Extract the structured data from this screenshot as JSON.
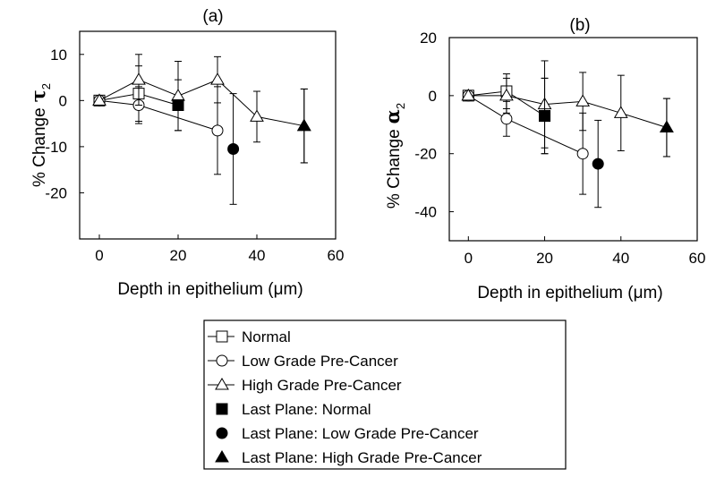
{
  "chart_data": [
    {
      "type": "line",
      "panel_title": "(a)",
      "xlabel": "Depth in epithelium (μm)",
      "ylabel_text": "% Change",
      "ylabel_symbol": "τ",
      "ylabel_subscript": "2",
      "xlim": [
        -5,
        60
      ],
      "ylim": [
        -30,
        15
      ],
      "xticks": [
        0,
        20,
        40,
        60
      ],
      "yticks": [
        10,
        0,
        -10,
        -20
      ],
      "series": [
        {
          "name": "Normal",
          "marker": "square-open",
          "x": [
            0,
            10,
            20
          ],
          "y": [
            0,
            1.5,
            -1
          ],
          "err": [
            null,
            6,
            5.5
          ]
        },
        {
          "name": "Low Grade Pre-Cancer",
          "marker": "circle-open",
          "x": [
            0,
            10,
            30
          ],
          "y": [
            0,
            -1,
            -6.5
          ],
          "err": [
            null,
            4,
            9.5
          ]
        },
        {
          "name": "High Grade Pre-Cancer",
          "marker": "triangle-open",
          "x": [
            0,
            10,
            20,
            30,
            40,
            52
          ],
          "y": [
            0,
            4.5,
            1,
            4.5,
            -3.5,
            -5.5
          ],
          "err": [
            null,
            5.5,
            7.5,
            5,
            5.5,
            8
          ]
        },
        {
          "name": "Last Plane: Normal",
          "marker": "square-filled",
          "x": [
            20
          ],
          "y": [
            -1
          ],
          "err": [
            null
          ]
        },
        {
          "name": "Last Plane: Low Grade Pre-Cancer",
          "marker": "circle-filled",
          "x": [
            34
          ],
          "y": [
            -10.5
          ],
          "err": [
            12
          ]
        },
        {
          "name": "Last Plane: High Grade Pre-Cancer",
          "marker": "triangle-filled",
          "x": [
            52
          ],
          "y": [
            -5.5
          ],
          "err": [
            8
          ]
        }
      ]
    },
    {
      "type": "line",
      "panel_title": "(b)",
      "xlabel": "Depth in epithelium (μm)",
      "ylabel_text": "% Change",
      "ylabel_symbol": "α",
      "ylabel_subscript": "2",
      "xlim": [
        -5,
        60
      ],
      "ylim": [
        -50,
        20
      ],
      "xticks": [
        0,
        20,
        40,
        60
      ],
      "yticks": [
        20,
        0,
        -20,
        -40
      ],
      "series": [
        {
          "name": "Normal",
          "marker": "square-open",
          "x": [
            0,
            10,
            20
          ],
          "y": [
            0,
            1.5,
            -7
          ],
          "err": [
            null,
            6,
            13
          ]
        },
        {
          "name": "Low Grade Pre-Cancer",
          "marker": "circle-open",
          "x": [
            0,
            10,
            30
          ],
          "y": [
            0,
            -8,
            -20
          ],
          "err": [
            null,
            6,
            14
          ]
        },
        {
          "name": "High Grade Pre-Cancer",
          "marker": "triangle-open",
          "x": [
            0,
            10,
            20,
            30,
            40,
            52
          ],
          "y": [
            0,
            0,
            -3,
            -2,
            -6,
            -11
          ],
          "err": [
            null,
            6,
            15,
            10,
            13,
            10
          ]
        },
        {
          "name": "Last Plane: Normal",
          "marker": "square-filled",
          "x": [
            20
          ],
          "y": [
            -7
          ],
          "err": [
            13
          ]
        },
        {
          "name": "Last Plane: Low Grade Pre-Cancer",
          "marker": "circle-filled",
          "x": [
            34
          ],
          "y": [
            -23.5
          ],
          "err": [
            15
          ]
        },
        {
          "name": "Last Plane: High Grade Pre-Cancer",
          "marker": "triangle-filled",
          "x": [
            52
          ],
          "y": [
            -11
          ],
          "err": [
            10
          ]
        }
      ]
    }
  ],
  "legend": [
    {
      "label": "Normal",
      "marker": "square-open",
      "line": true
    },
    {
      "label": "Low Grade Pre-Cancer",
      "marker": "circle-open",
      "line": true
    },
    {
      "label": "High Grade Pre-Cancer",
      "marker": "triangle-open",
      "line": true
    },
    {
      "label": "Last Plane: Normal",
      "marker": "square-filled",
      "line": false
    },
    {
      "label": "Last Plane: Low Grade Pre-Cancer",
      "marker": "circle-filled",
      "line": false
    },
    {
      "label": "Last Plane: High Grade Pre-Cancer",
      "marker": "triangle-filled",
      "line": false
    }
  ]
}
